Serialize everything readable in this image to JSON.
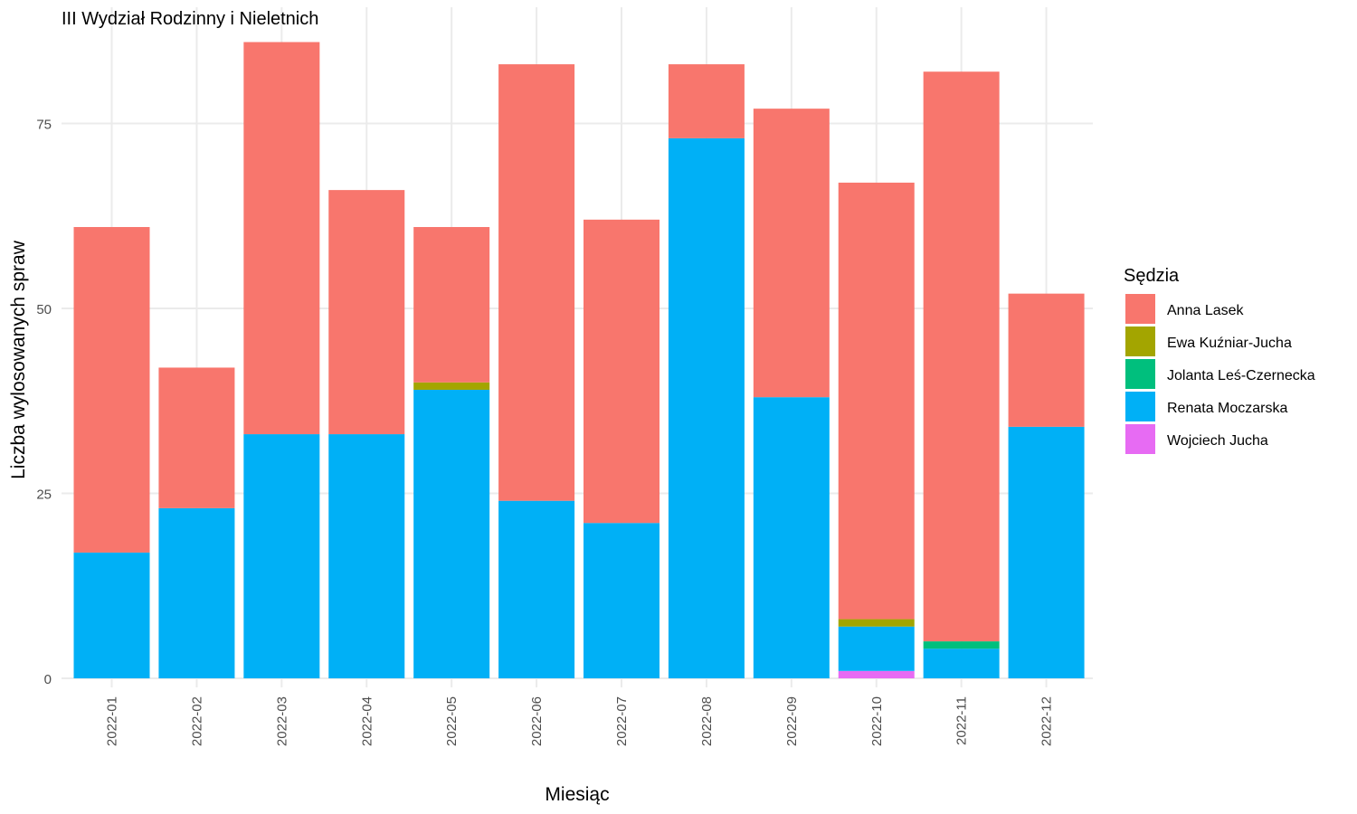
{
  "chart_data": {
    "type": "bar",
    "stacked": true,
    "title": "III Wydział Rodzinny i Nieletnich",
    "xlabel": "Miesiąc",
    "ylabel": "Liczba wylosowanych spraw",
    "ylim": [
      0,
      86
    ],
    "yticks": [
      0,
      25,
      50,
      75
    ],
    "grid": true,
    "legend_title": "Sędzia",
    "legend_position": "right",
    "categories": [
      "2022-01",
      "2022-02",
      "2022-03",
      "2022-04",
      "2022-05",
      "2022-06",
      "2022-07",
      "2022-08",
      "2022-09",
      "2022-10",
      "2022-11",
      "2022-12"
    ],
    "series": [
      {
        "name": "Anna Lasek",
        "color": "#F8766D",
        "values": [
          44,
          19,
          53,
          33,
          21,
          59,
          41,
          10,
          39,
          59,
          77,
          18
        ]
      },
      {
        "name": "Ewa Kuźniar-Jucha",
        "color": "#A3A500",
        "values": [
          0,
          0,
          0,
          0,
          1,
          0,
          0,
          0,
          0,
          1,
          0,
          0
        ]
      },
      {
        "name": "Jolanta Leś-Czernecka",
        "color": "#00BF7D",
        "values": [
          0,
          0,
          0,
          0,
          0,
          0,
          0,
          0,
          0,
          0,
          1,
          0
        ]
      },
      {
        "name": "Renata Moczarska",
        "color": "#00B0F6",
        "values": [
          17,
          23,
          33,
          33,
          39,
          24,
          21,
          73,
          38,
          6,
          4,
          34
        ]
      },
      {
        "name": "Wojciech Jucha",
        "color": "#E76BF3",
        "values": [
          0,
          0,
          0,
          0,
          0,
          0,
          0,
          0,
          0,
          1,
          0,
          0
        ]
      }
    ],
    "stack_order_bottom_to_top": [
      "Wojciech Jucha",
      "Renata Moczarska",
      "Jolanta Leś-Czernecka",
      "Ewa Kuźniar-Jucha",
      "Anna Lasek"
    ]
  }
}
